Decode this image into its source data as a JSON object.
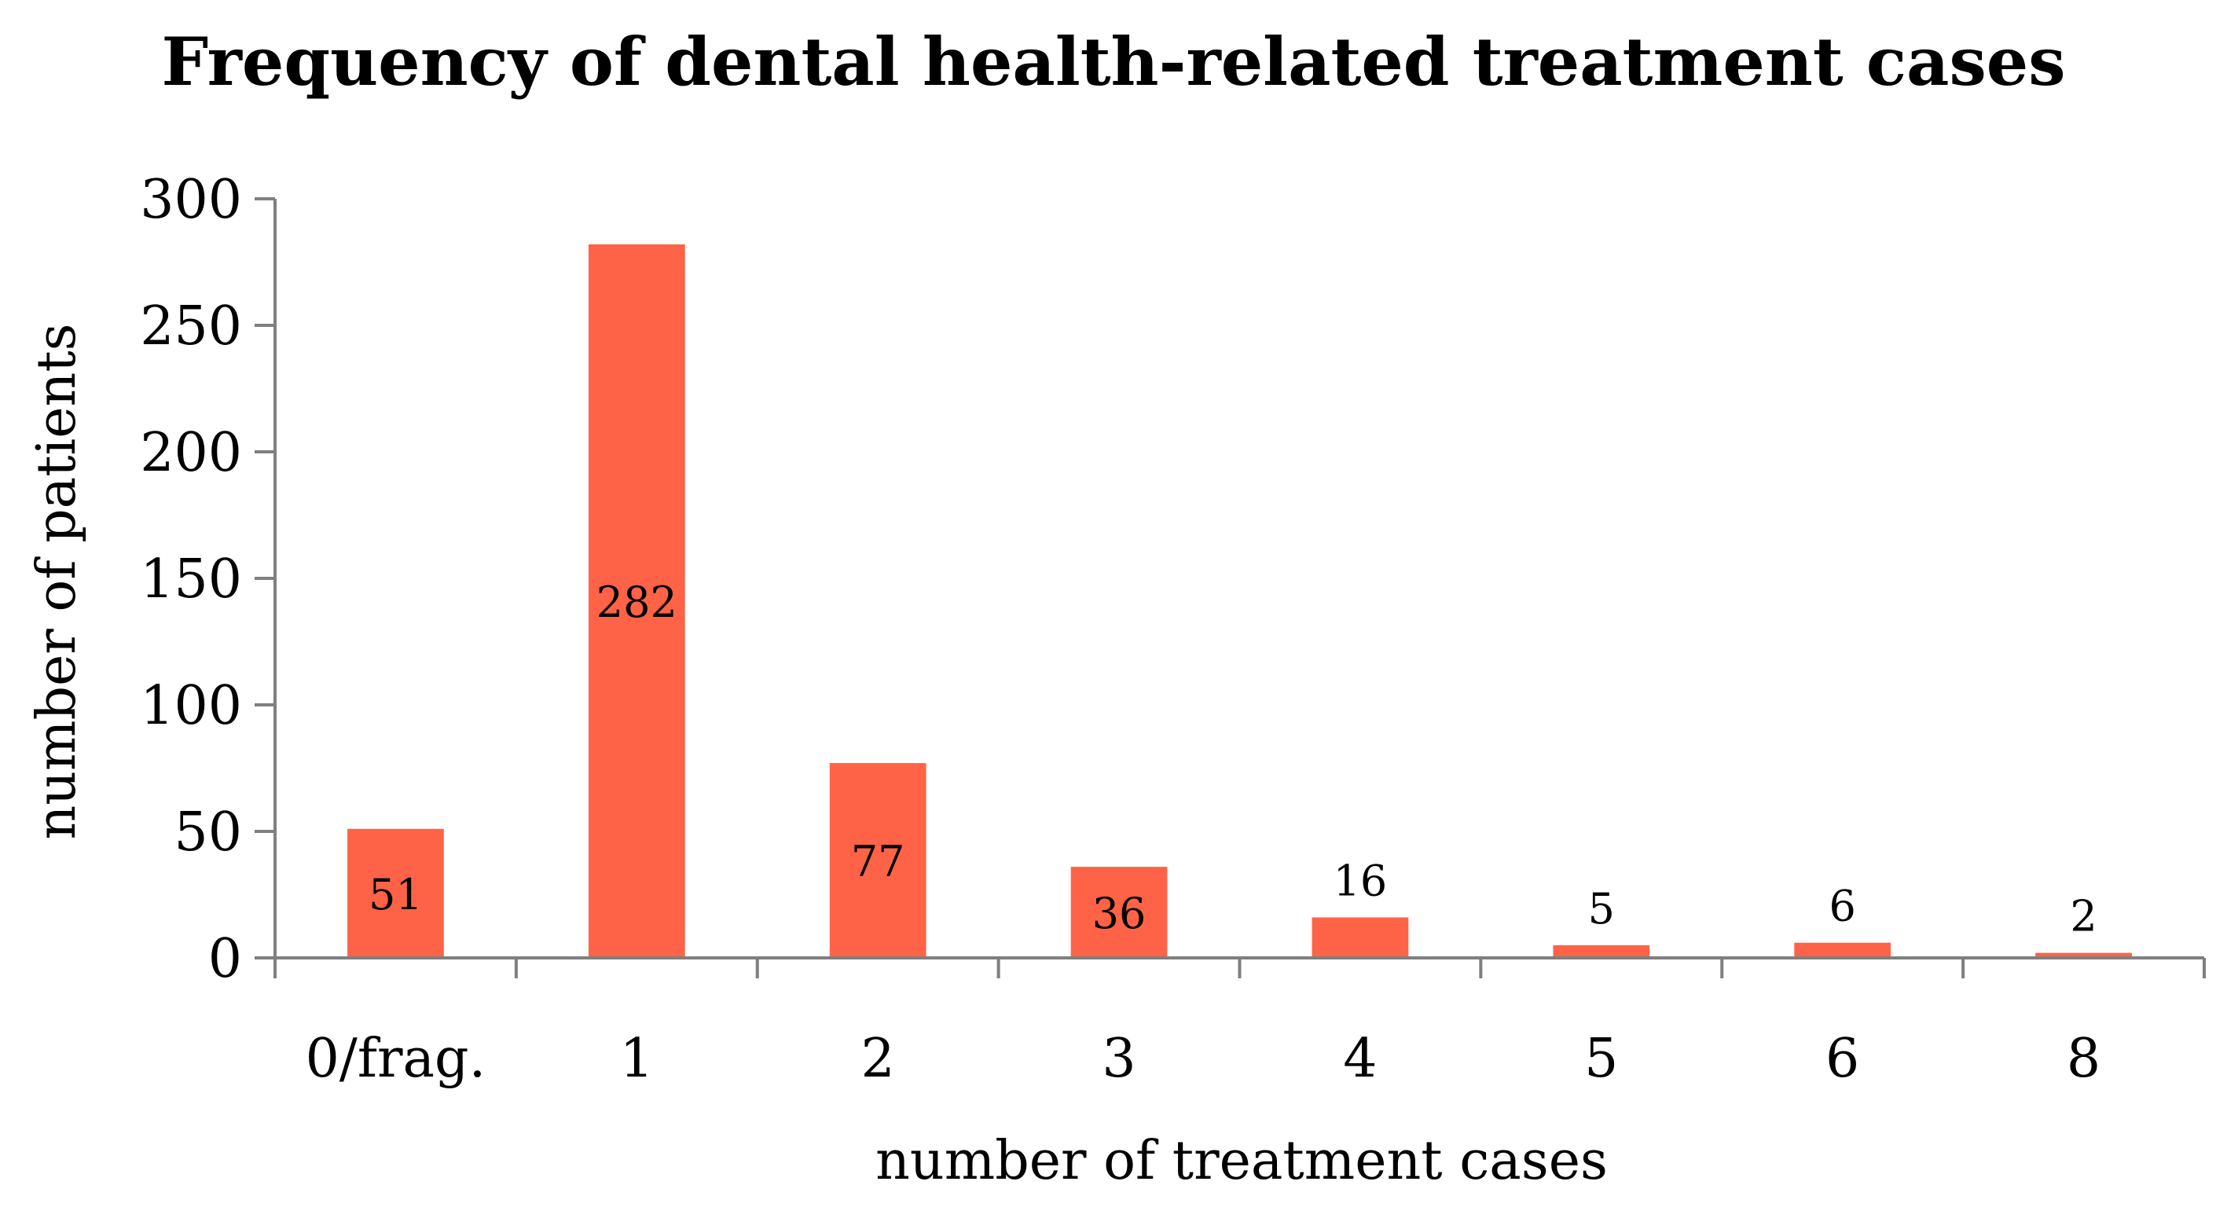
{
  "chart_data": {
    "type": "bar",
    "title": "Frequency of dental health-related treatment cases",
    "xlabel": "number of treatment cases",
    "ylabel": "number of patients",
    "categories": [
      "0/frag.",
      "1",
      "2",
      "3",
      "4",
      "5",
      "6",
      "8"
    ],
    "values": [
      51,
      282,
      77,
      36,
      16,
      5,
      6,
      2
    ],
    "data_labels": [
      "51",
      "282",
      "77",
      "36",
      "16",
      "5",
      "6",
      "2"
    ],
    "ylim": [
      0,
      300
    ],
    "yticks": [
      0,
      50,
      100,
      150,
      200,
      250,
      300
    ],
    "ytick_labels": [
      "0",
      "50",
      "100",
      "150",
      "200",
      "250",
      "300"
    ],
    "grid": false,
    "legend": "none",
    "bar_color": "#FF6347"
  }
}
